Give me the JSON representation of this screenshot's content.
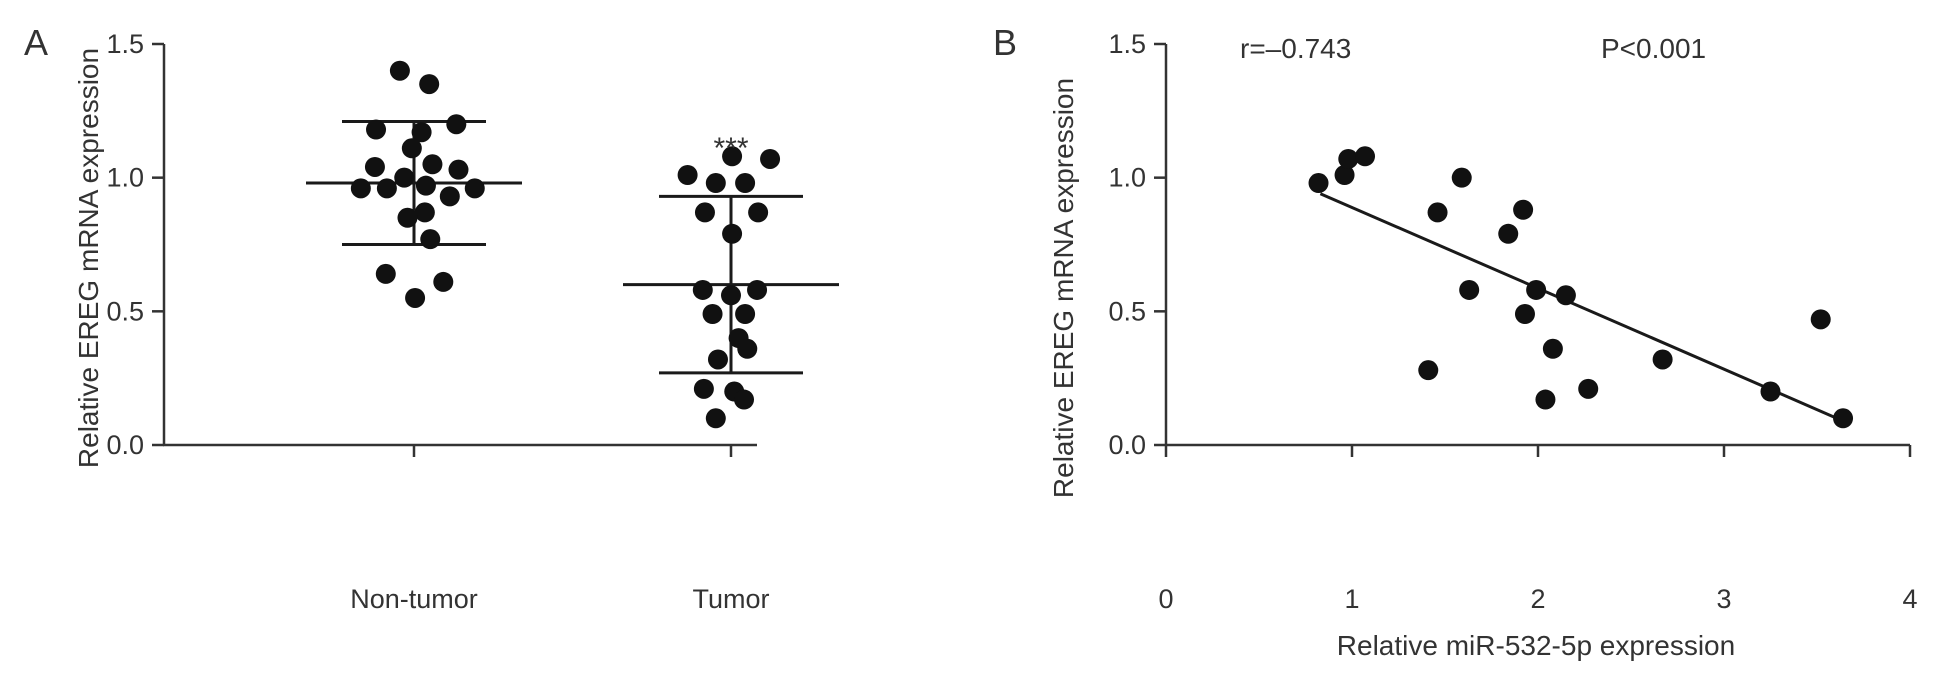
{
  "chart_data": [
    {
      "type": "scatter",
      "panel_label": "A",
      "ylabel": "Relative EREG mRNA expression",
      "ylim": [
        0,
        1.5
      ],
      "yticks": [
        "0.0",
        "0.5",
        "1.0",
        "1.5"
      ],
      "categories": [
        "Non-tumor",
        "Tumor"
      ],
      "significance_label": "***",
      "groups": [
        {
          "category": "Non-tumor",
          "mean": 0.98,
          "sd_low": 0.75,
          "sd_high": 1.21,
          "points": [
            {
              "offset": -0.13,
              "y": 1.4
            },
            {
              "offset": 0.14,
              "y": 1.35
            },
            {
              "offset": -0.35,
              "y": 1.18
            },
            {
              "offset": 0.07,
              "y": 1.17
            },
            {
              "offset": 0.39,
              "y": 1.2
            },
            {
              "offset": -0.02,
              "y": 1.11
            },
            {
              "offset": -0.36,
              "y": 1.04
            },
            {
              "offset": 0.17,
              "y": 1.05
            },
            {
              "offset": 0.41,
              "y": 1.03
            },
            {
              "offset": -0.49,
              "y": 0.96
            },
            {
              "offset": -0.25,
              "y": 0.96
            },
            {
              "offset": -0.09,
              "y": 1.0
            },
            {
              "offset": 0.11,
              "y": 0.97
            },
            {
              "offset": 0.33,
              "y": 0.93
            },
            {
              "offset": 0.56,
              "y": 0.96
            },
            {
              "offset": 0.1,
              "y": 0.87
            },
            {
              "offset": -0.06,
              "y": 0.85
            },
            {
              "offset": 0.15,
              "y": 0.77
            },
            {
              "offset": -0.26,
              "y": 0.64
            },
            {
              "offset": 0.27,
              "y": 0.61
            },
            {
              "offset": 0.01,
              "y": 0.55
            }
          ]
        },
        {
          "category": "Tumor",
          "mean": 0.6,
          "sd_low": 0.27,
          "sd_high": 0.93,
          "points": [
            {
              "offset": -0.4,
              "y": 1.01
            },
            {
              "offset": -0.14,
              "y": 0.98
            },
            {
              "offset": 0.01,
              "y": 1.08
            },
            {
              "offset": 0.13,
              "y": 0.98
            },
            {
              "offset": 0.36,
              "y": 1.07
            },
            {
              "offset": -0.24,
              "y": 0.87
            },
            {
              "offset": 0.25,
              "y": 0.87
            },
            {
              "offset": 0.01,
              "y": 0.79
            },
            {
              "offset": -0.26,
              "y": 0.58
            },
            {
              "offset": 0.0,
              "y": 0.56
            },
            {
              "offset": 0.24,
              "y": 0.58
            },
            {
              "offset": -0.17,
              "y": 0.49
            },
            {
              "offset": 0.13,
              "y": 0.49
            },
            {
              "offset": 0.07,
              "y": 0.4
            },
            {
              "offset": -0.12,
              "y": 0.32
            },
            {
              "offset": 0.15,
              "y": 0.36
            },
            {
              "offset": -0.25,
              "y": 0.21
            },
            {
              "offset": 0.03,
              "y": 0.2
            },
            {
              "offset": 0.12,
              "y": 0.17
            },
            {
              "offset": -0.14,
              "y": 0.1
            }
          ]
        }
      ]
    },
    {
      "type": "scatter",
      "panel_label": "B",
      "xlabel": "Relative miR-532-5p expression",
      "ylabel": "Relative EREG mRNA expression",
      "xlim": [
        0,
        4
      ],
      "ylim": [
        0,
        1.5
      ],
      "xticks": [
        "0",
        "1",
        "2",
        "3",
        "4"
      ],
      "yticks": [
        "0.0",
        "0.5",
        "1.0",
        "1.5"
      ],
      "r_label": "r=–0.743",
      "p_label": "P<0.001",
      "regression": {
        "x": [
          0.83,
          3.64
        ],
        "y": [
          0.94,
          0.09
        ]
      },
      "x": [
        0.82,
        0.96,
        0.98,
        1.07,
        1.59,
        1.46,
        1.84,
        1.92,
        1.63,
        1.99,
        2.15,
        1.93,
        2.67,
        2.08,
        1.41,
        2.27,
        2.04,
        3.25,
        3.52,
        3.64
      ],
      "y": [
        0.98,
        1.01,
        1.07,
        1.08,
        1.0,
        0.87,
        0.79,
        0.88,
        0.58,
        0.58,
        0.56,
        0.49,
        0.32,
        0.36,
        0.28,
        0.21,
        0.17,
        0.2,
        0.47,
        0.1
      ]
    }
  ]
}
